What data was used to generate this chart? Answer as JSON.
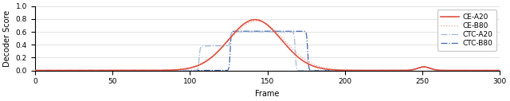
{
  "title": "",
  "xlabel": "Frame",
  "ylabel": "Decoder Score",
  "xlim": [
    0,
    300
  ],
  "ylim": [
    0.0,
    1.0
  ],
  "yticks": [
    0.0,
    0.2,
    0.4,
    0.6,
    0.8,
    1.0
  ],
  "xticks": [
    0,
    50,
    100,
    150,
    200,
    250,
    300
  ],
  "figsize": [
    6.4,
    1.27
  ],
  "dpi": 100,
  "colors": {
    "CE-A20": "#e05040",
    "CE-B80": "#e8a090",
    "CTC-A20": "#a0b8d8",
    "CTC-B80": "#4466aa"
  },
  "background_color": "#ffffff"
}
